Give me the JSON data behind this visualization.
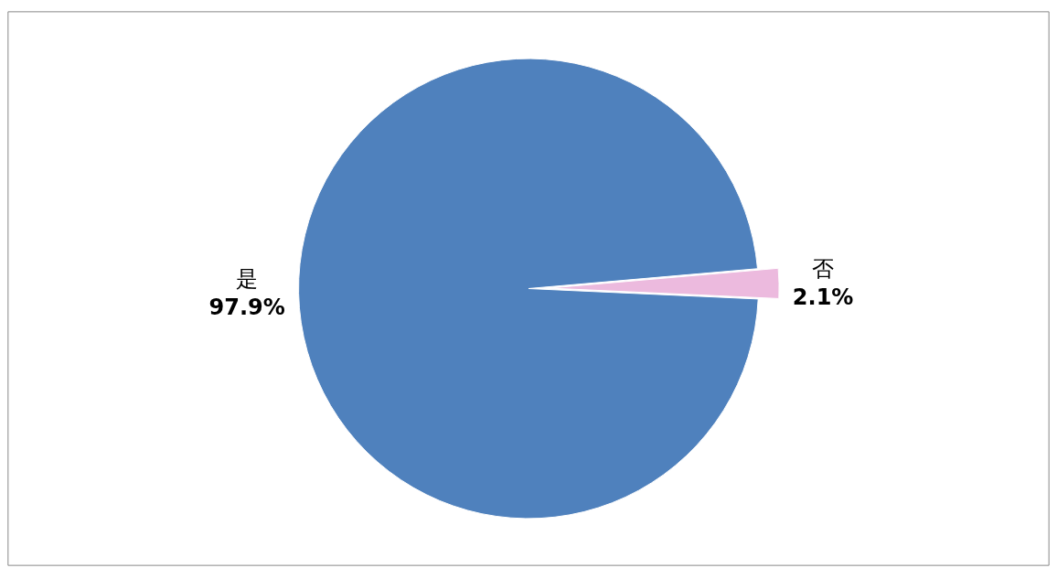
{
  "chart_data": {
    "type": "pie",
    "categories": [
      "是",
      "否"
    ],
    "values": [
      97.9,
      2.1
    ],
    "value_labels": [
      "97.9%",
      "2.1%"
    ],
    "colors": [
      "#4f81bd",
      "#ecbade"
    ],
    "legend": false
  }
}
